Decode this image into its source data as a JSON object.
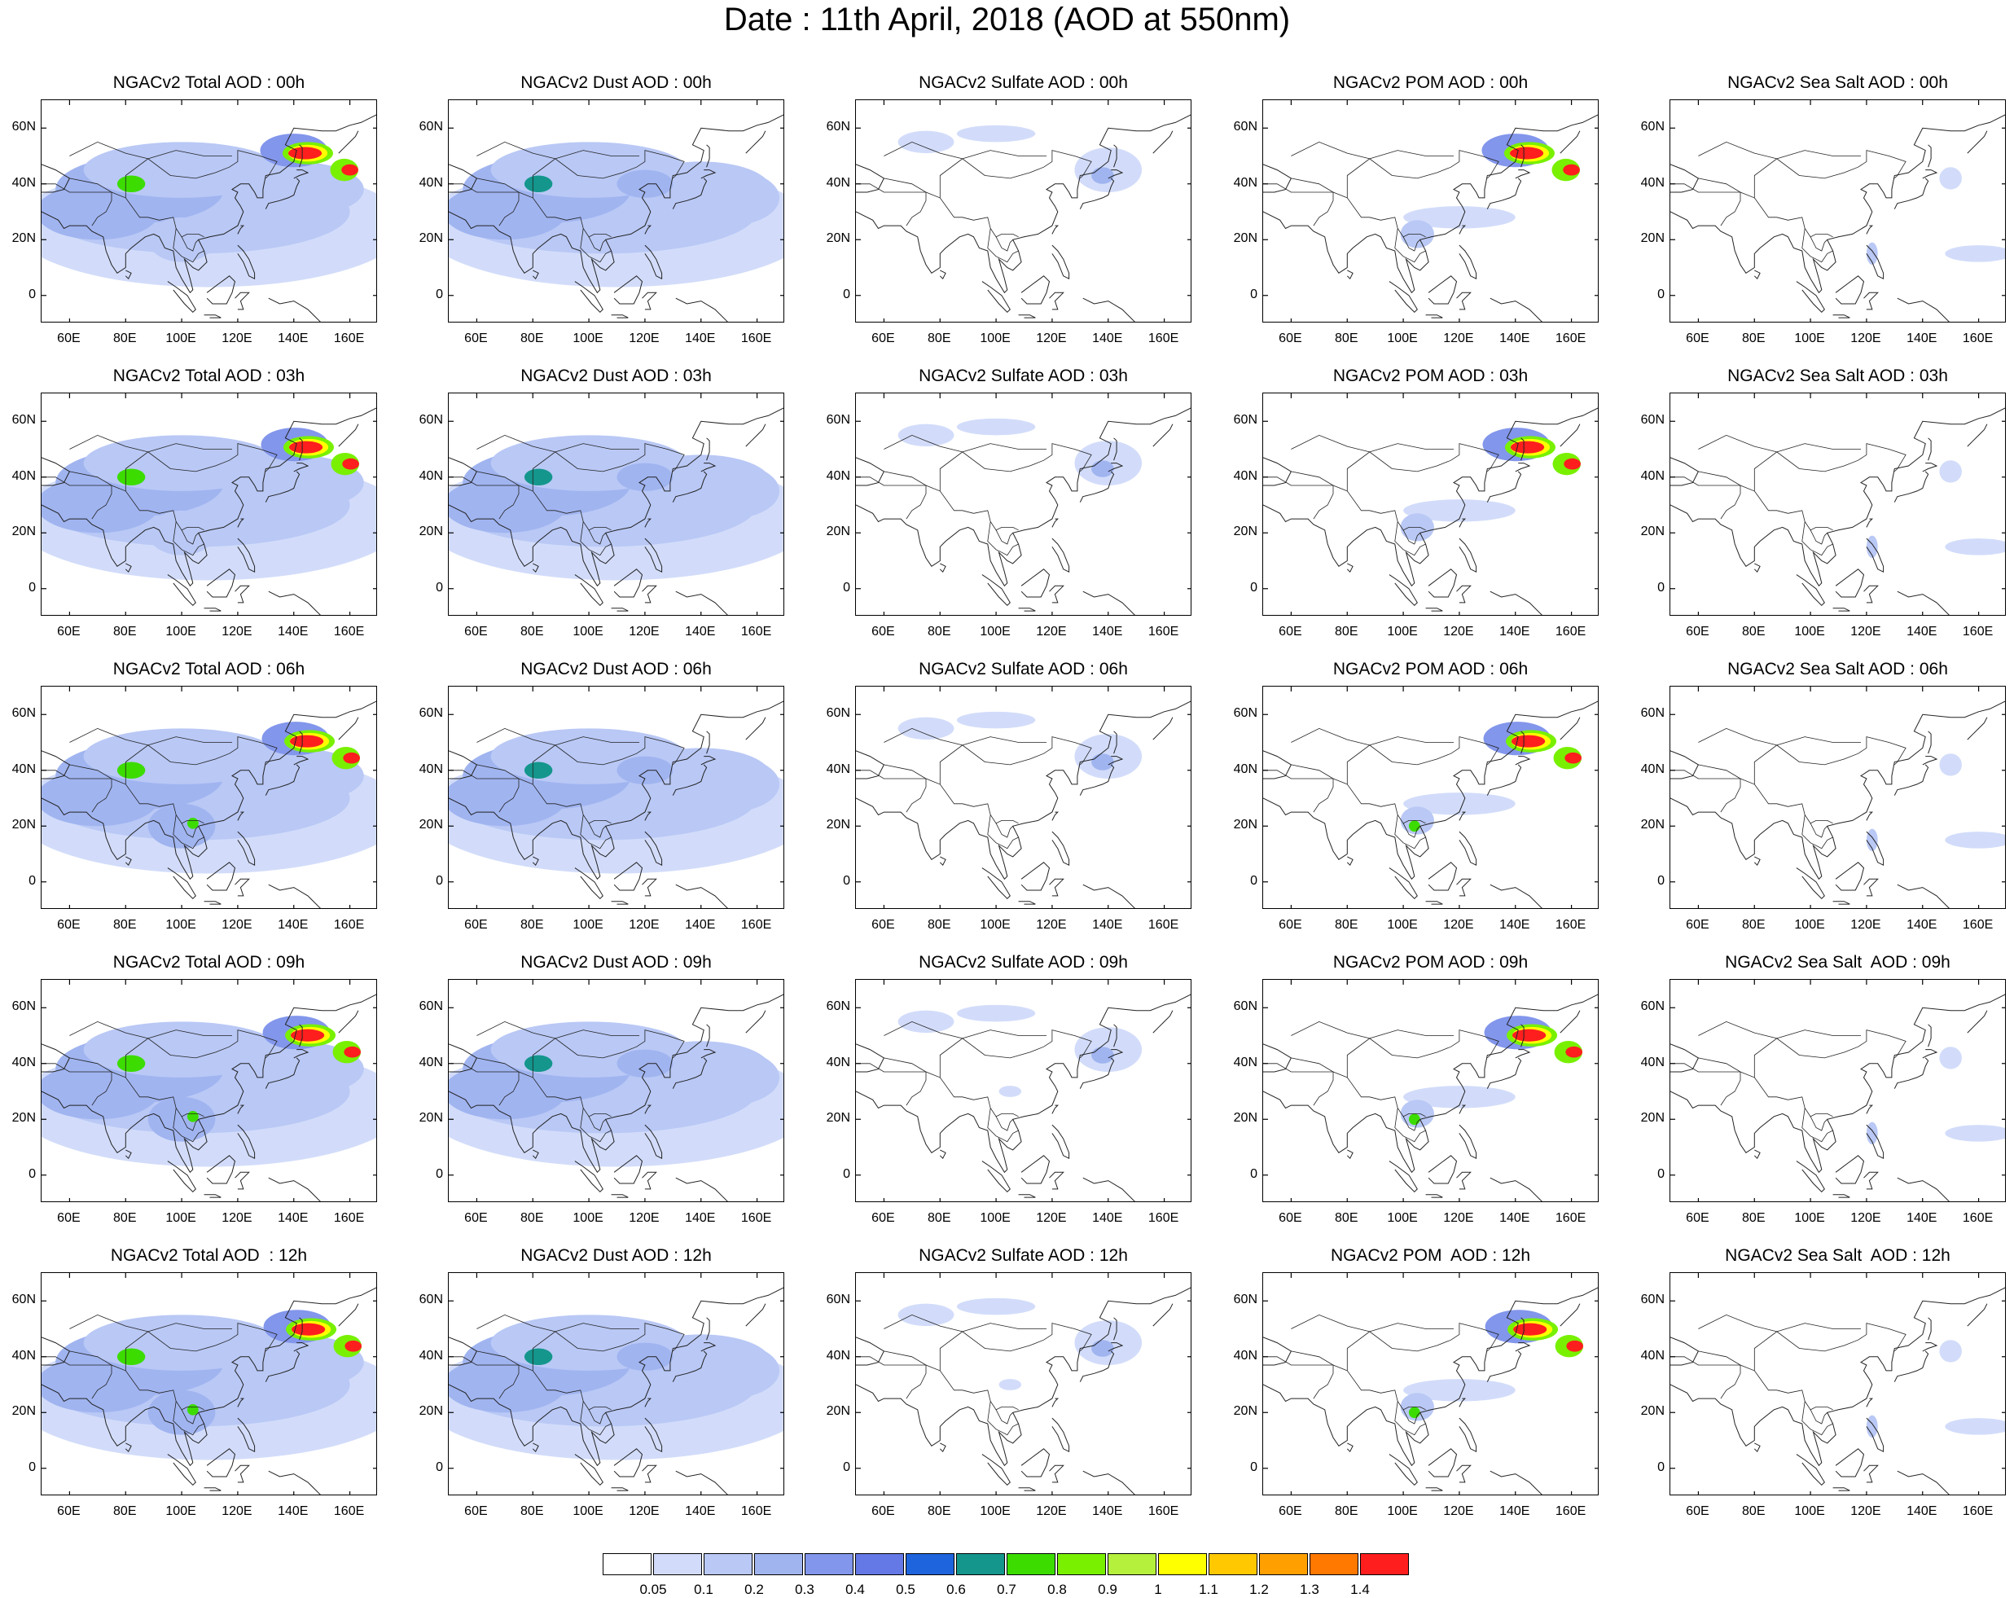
{
  "title": "Date : 11th April, 2018 (AOD at 550nm)",
  "axes": {
    "lat_labels": [
      "60N",
      "40N",
      "20N",
      "0"
    ],
    "lat_values": [
      60,
      40,
      20,
      0
    ],
    "lon_labels": [
      "60E",
      "80E",
      "100E",
      "120E",
      "140E",
      "160E"
    ],
    "lon_values": [
      60,
      80,
      100,
      120,
      140,
      160
    ],
    "lon_range": [
      50,
      170
    ],
    "lat_range": [
      -10,
      70
    ]
  },
  "columns": [
    "total",
    "dust",
    "sulfate",
    "pom",
    "seasalt"
  ],
  "panels": [
    [
      "NGACv2 Total AOD : 00h",
      "NGACv2 Dust AOD : 00h",
      "NGACv2 Sulfate AOD : 00h",
      "NGACv2 POM AOD : 00h",
      "NGACv2 Sea Salt AOD : 00h"
    ],
    [
      "NGACv2 Total AOD : 03h",
      "NGACv2 Dust AOD : 03h",
      "NGACv2 Sulfate AOD : 03h",
      "NGACv2 POM AOD : 03h",
      "NGACv2 Sea Salt AOD : 03h"
    ],
    [
      "NGACv2 Total AOD : 06h",
      "NGACv2 Dust AOD : 06h",
      "NGACv2 Sulfate AOD : 06h",
      "NGACv2 POM AOD : 06h",
      "NGACv2 Sea Salt AOD : 06h"
    ],
    [
      "NGACv2 Total AOD : 09h",
      "NGACv2 Dust AOD : 09h",
      "NGACv2 Sulfate AOD : 09h",
      "NGACv2 POM AOD : 09h",
      "NGACv2 Sea Salt  AOD : 09h"
    ],
    [
      "NGACv2 Total AOD  : 12h",
      "NGACv2 Dust AOD : 12h",
      "NGACv2 Sulfate AOD : 12h",
      "NGACv2 POM  AOD : 12h",
      "NGACv2 Sea Salt  AOD : 12h"
    ]
  ],
  "colorbar": {
    "labels": [
      "0.05",
      "0.1",
      "0.2",
      "0.3",
      "0.4",
      "0.5",
      "0.6",
      "0.7",
      "0.8",
      "0.9",
      "1",
      "1.1",
      "1.2",
      "1.3",
      "1.4"
    ],
    "colors": [
      "#ffffff",
      "#d2dcfa",
      "#b9c8f5",
      "#a0b4f0",
      "#8296eb",
      "#6478e6",
      "#1e64dc",
      "#14968c",
      "#3cdc00",
      "#78f000",
      "#b4f03c",
      "#ffff00",
      "#ffc800",
      "#ffa000",
      "#ff7800",
      "#ff1e1e"
    ]
  }
}
